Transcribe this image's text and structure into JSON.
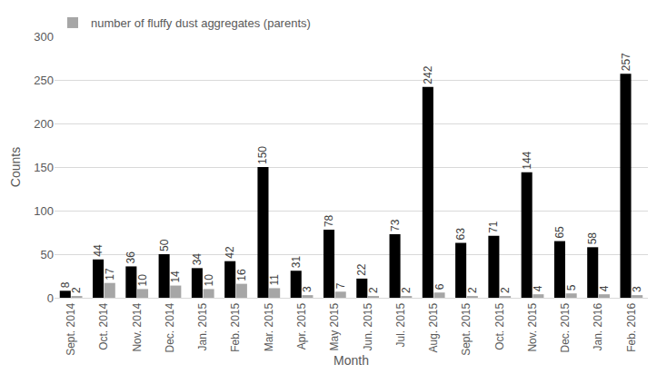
{
  "chart_data": {
    "type": "bar",
    "x_label": "Month",
    "y_label": "Counts",
    "categories": [
      "Sept. 2014",
      "Oct. 2014",
      "Nov. 2014",
      "Dec. 2014",
      "Jan. 2015",
      "Feb. 2015",
      "Mar. 2015",
      "Apr. 2015",
      "May 2015",
      "Jun. 2015",
      "Jul. 2015",
      "Aug. 2015",
      "Sept. 2015",
      "Oct. 2015",
      "Nov. 2015",
      "Dec. 2015",
      "Jan. 2016",
      "Feb. 2016"
    ],
    "series": [
      {
        "color": "#000000",
        "values": [
          8,
          44,
          36,
          50,
          34,
          42,
          150,
          31,
          78,
          22,
          73,
          242,
          63,
          71,
          144,
          65,
          58,
          257
        ]
      },
      {
        "name": "number of fluffy dust aggregates (parents)",
        "color": "#a6a6a6",
        "values": [
          2,
          17,
          10,
          14,
          10,
          16,
          11,
          3,
          7,
          2,
          2,
          6,
          2,
          2,
          4,
          5,
          4,
          3
        ]
      }
    ],
    "ylim": [
      0,
      300
    ],
    "yticks": [
      0,
      50,
      100,
      150,
      200,
      250,
      300
    ],
    "grid": true,
    "data_labels": true,
    "legend": "top-left"
  }
}
